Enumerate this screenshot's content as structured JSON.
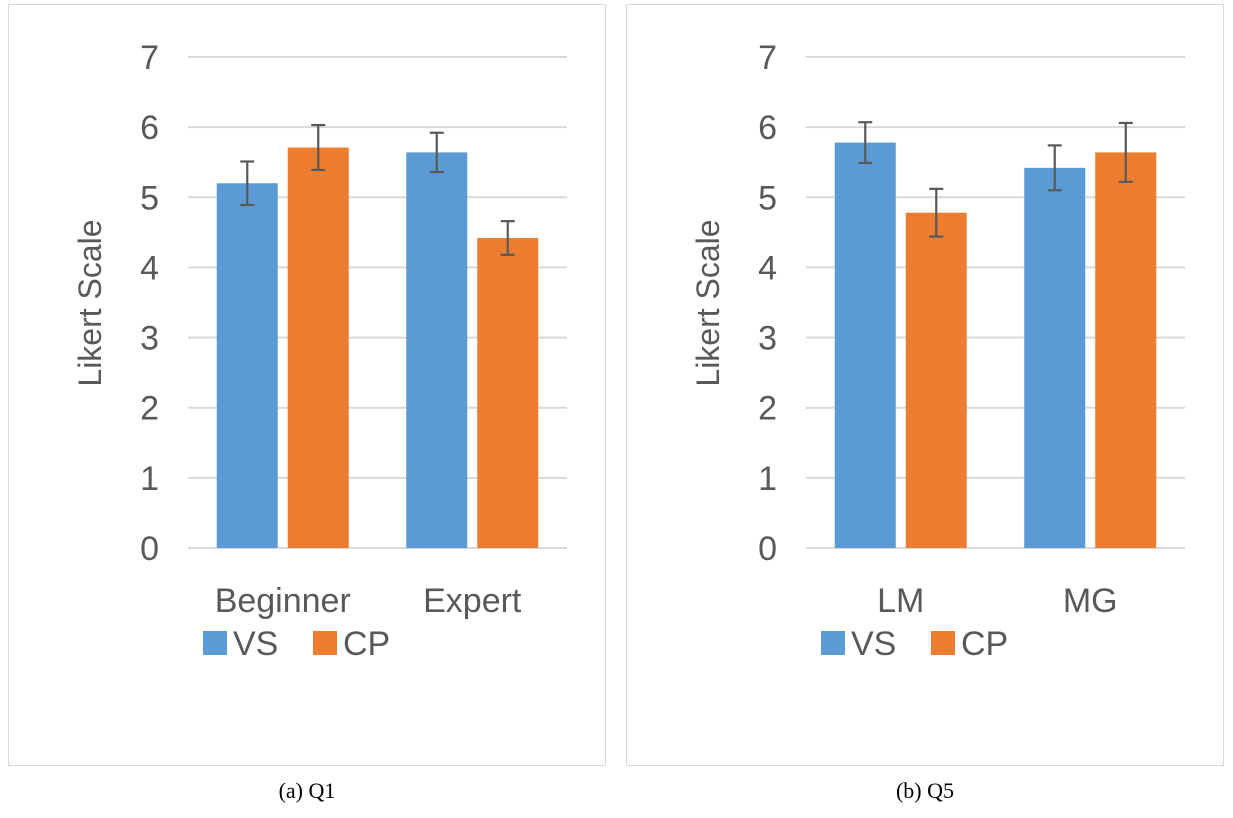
{
  "colors": {
    "VS": "#5b9bd5",
    "CP": "#ed7d31",
    "grid": "#d9d9d9",
    "errorbar": "#595959",
    "text": "#595959"
  },
  "captions": [
    "(a) Q1",
    "(b) Q5"
  ],
  "chart_data": [
    {
      "type": "bar",
      "caption": "(a) Q1",
      "categories": [
        "Beginner",
        "Expert"
      ],
      "ylabel": "Likert Scale",
      "xlabel": "",
      "ylim": [
        0,
        7
      ],
      "yticks": [
        "0",
        "1",
        "2",
        "3",
        "4",
        "5",
        "6",
        "7"
      ],
      "grid": true,
      "legend_position": "bottom",
      "series": [
        {
          "name": "VS",
          "values": [
            5.2,
            5.64
          ],
          "errors": [
            0.31,
            0.28
          ]
        },
        {
          "name": "CP",
          "values": [
            5.71,
            4.42
          ],
          "errors": [
            0.32,
            0.24
          ]
        }
      ]
    },
    {
      "type": "bar",
      "caption": "(b) Q5",
      "categories": [
        "LM",
        "MG"
      ],
      "ylabel": "Likert Scale",
      "xlabel": "",
      "ylim": [
        0,
        7
      ],
      "yticks": [
        "0",
        "1",
        "2",
        "3",
        "4",
        "5",
        "6",
        "7"
      ],
      "grid": true,
      "legend_position": "bottom",
      "series": [
        {
          "name": "VS",
          "values": [
            5.78,
            5.42
          ],
          "errors": [
            0.29,
            0.32
          ]
        },
        {
          "name": "CP",
          "values": [
            4.78,
            5.64
          ],
          "errors": [
            0.34,
            0.42
          ]
        }
      ]
    }
  ]
}
